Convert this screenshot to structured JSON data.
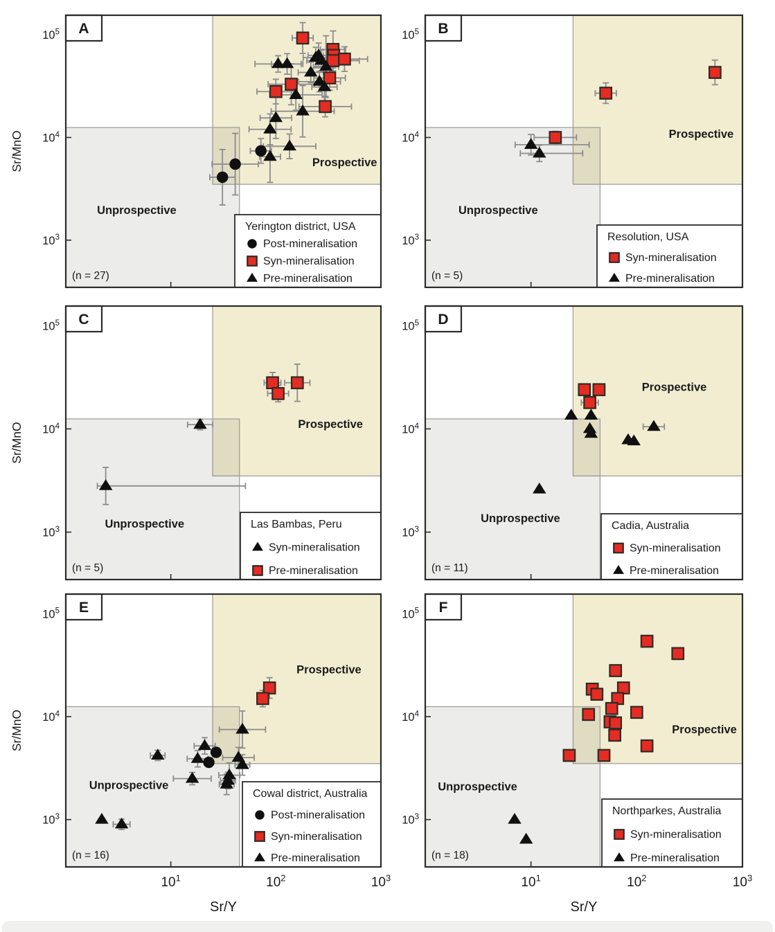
{
  "figure": {
    "xlabel": "Sr/Y",
    "ylabel": "Sr/MnO",
    "x_tick_labels": [
      "10^1",
      "10^2",
      "10^3"
    ],
    "x_tick_values": [
      10,
      100,
      1000
    ],
    "y_tick_labels": [
      "10^5",
      "10^4",
      "10^3"
    ],
    "y_tick_values": [
      100000,
      10000,
      1000
    ],
    "xlim": [
      1,
      1000
    ],
    "ylim": [
      347,
      155000
    ],
    "zone_labels": {
      "prospective": "Prospective",
      "unprospective": "Unprospective"
    },
    "zones": {
      "prospective": {
        "x_min": 25,
        "y_min": 3500
      },
      "unprospective": {
        "x_max": 45,
        "y_max": 12500
      }
    },
    "colors": {
      "prospective_fill": "#f2edd1",
      "unprospective_fill": "rgba(100,100,92,0.12)",
      "zone_stroke": "#9a9a97",
      "marker_red": "#e62b22",
      "marker_black": "#101010",
      "marker_stroke": "#2f2a26",
      "error_bar": "#8c8c8c",
      "text": "#1a1a1a",
      "panel_border": "#2b2b2b",
      "footer_band": "#f0f0ee"
    }
  },
  "chart_data": [
    {
      "id": "A",
      "letter": "A",
      "type": "scatter",
      "legend_title": "Yerington district, USA",
      "n_label": "(n = 27)",
      "row": 0,
      "col": 0,
      "label_pos": {
        "prospective": [
          0.885,
          0.555
        ],
        "unprospective": [
          0.225,
          0.73
        ]
      },
      "series": [
        {
          "name": "Post-mineralisation",
          "marker": "circle",
          "color": "black",
          "points": [
            [
              72,
              7400,
              0.1,
              0.12
            ],
            [
              41,
              5500,
              0.22,
              0.3
            ],
            [
              31,
              4100,
              0.12,
              0.27
            ]
          ]
        },
        {
          "name": "Syn-mineralisation",
          "marker": "square",
          "color": "red",
          "points": [
            [
              180,
              93000,
              0.1,
              0.15
            ],
            [
              350,
              72000,
              0.12,
              0.18
            ],
            [
              355,
              63000,
              0.1,
              0.1
            ],
            [
              350,
              56000,
              0.25,
              0.1
            ],
            [
              450,
              58000,
              0.22,
              0.12
            ],
            [
              325,
              38000,
              0.15,
              0.12
            ],
            [
              140,
              33000,
              0.22,
              0.2
            ],
            [
              100,
              28000,
              0.18,
              0.12
            ],
            [
              295,
              20000,
              0.25,
              0.1
            ]
          ]
        },
        {
          "name": "Pre-mineralisation",
          "marker": "triangle",
          "color": "black",
          "points": [
            [
              105,
              52000,
              0.22,
              0.08
            ],
            [
              128,
              52000,
              0.15,
              0.1
            ],
            [
              240,
              60000,
              0.12,
              0.1
            ],
            [
              255,
              63000,
              0.1,
              0.12
            ],
            [
              270,
              56000,
              0.1,
              0.1
            ],
            [
              300,
              49000,
              0.12,
              0.3
            ],
            [
              215,
              43000,
              0.12,
              0.1
            ],
            [
              260,
              35000,
              0.2,
              0.1
            ],
            [
              290,
              31000,
              0.12,
              0.15
            ],
            [
              155,
              26000,
              0.25,
              0.15
            ],
            [
              180,
              18000,
              0.3,
              0.25
            ],
            [
              100,
              15500,
              0.15,
              0.2
            ],
            [
              88,
              12000,
              0.2,
              0.15
            ],
            [
              135,
              8200,
              0.25,
              0.12
            ],
            [
              88,
              6500,
              0.1,
              0.25
            ]
          ]
        }
      ]
    },
    {
      "id": "B",
      "letter": "B",
      "type": "scatter",
      "legend_title": "Resolution, USA",
      "n_label": "(n = 5)",
      "row": 0,
      "col": 1,
      "label_pos": {
        "prospective": [
          0.87,
          0.45
        ],
        "unprospective": [
          0.23,
          0.73
        ]
      },
      "series": [
        {
          "name": "Syn-mineralisation",
          "marker": "square",
          "color": "red",
          "points": [
            [
              550,
              43000,
              0.03,
              0.12
            ],
            [
              51,
              27000,
              0.1,
              0.1
            ],
            [
              17,
              10000,
              0.2,
              0.06
            ]
          ]
        },
        {
          "name": "Pre-mineralisation",
          "marker": "triangle",
          "color": "black",
          "points": [
            [
              10,
              8500,
              0.15,
              0.1,
              0.55
            ],
            [
              12,
              7000,
              0.18,
              0.08,
              0.41
            ]
          ]
        }
      ]
    },
    {
      "id": "C",
      "letter": "C",
      "type": "scatter",
      "legend_title": "Las Bambas, Peru",
      "n_label": "(n = 5)",
      "row": 1,
      "col": 0,
      "label_pos": {
        "prospective": [
          0.84,
          0.445
        ],
        "unprospective": [
          0.25,
          0.81
        ]
      },
      "series": [
        {
          "name": "Syn-mineralisation",
          "marker": "triangle",
          "color": "black",
          "points": [
            [
              19,
              11000,
              0.12,
              0.05
            ],
            [
              2.4,
              2800,
              0.08,
              0.18,
              1.33
            ]
          ]
        },
        {
          "name": "Pre-mineralisation",
          "marker": "square",
          "color": "red",
          "points": [
            [
              93,
              28000,
              0.08,
              0.1
            ],
            [
              160,
              28000,
              0.12,
              0.18
            ],
            [
              105,
              22000,
              0.1,
              0.08
            ]
          ]
        }
      ]
    },
    {
      "id": "D",
      "letter": "D",
      "type": "scatter",
      "legend_title": "Cadia, Australia",
      "n_label": "(n = 11)",
      "row": 1,
      "col": 1,
      "label_pos": {
        "prospective": [
          0.785,
          0.31
        ],
        "unprospective": [
          0.3,
          0.79
        ]
      },
      "series": [
        {
          "name": "Syn-mineralisation",
          "marker": "square",
          "color": "red",
          "points": [
            [
              32,
              24000,
              0,
              0
            ],
            [
              44,
              24000,
              0,
              0
            ],
            [
              36,
              18000,
              0.08,
              0
            ]
          ]
        },
        {
          "name": "Pre-mineralisation",
          "marker": "triangle",
          "color": "black",
          "points": [
            [
              24,
              13500,
              0,
              0
            ],
            [
              37,
              13500,
              0,
              0
            ],
            [
              36,
              10000,
              0,
              0
            ],
            [
              37,
              9000,
              0,
              0
            ],
            [
              145,
              10500,
              0.1,
              0
            ],
            [
              83,
              7800,
              0,
              0
            ],
            [
              94,
              7600,
              0,
              0
            ],
            [
              12,
              2600,
              0,
              0
            ]
          ]
        }
      ]
    },
    {
      "id": "E",
      "letter": "E",
      "type": "scatter",
      "legend_title": "Cowal district, Australia",
      "n_label": "(n = 16)",
      "row": 2,
      "col": 0,
      "label_pos": {
        "prospective": [
          0.835,
          0.29
        ],
        "unprospective": [
          0.2,
          0.715
        ]
      },
      "series": [
        {
          "name": "Post-mineralisation",
          "marker": "circle",
          "color": "black",
          "points": [
            [
              27,
              4500,
              0,
              0
            ],
            [
              23,
              3600,
              0,
              0
            ]
          ]
        },
        {
          "name": "Syn-mineralisation",
          "marker": "square",
          "color": "red",
          "points": [
            [
              87,
              19000,
              0,
              0.1
            ],
            [
              75,
              15000,
              0,
              0.08
            ]
          ]
        },
        {
          "name": "Pre-mineralisation",
          "marker": "triangle",
          "color": "black",
          "points": [
            [
              48,
              7500,
              0.22,
              0.18
            ],
            [
              21,
              5200,
              0.1,
              0.08
            ],
            [
              7.5,
              4200,
              0.07,
              0.05
            ],
            [
              18,
              3900,
              0.1,
              0.08
            ],
            [
              44,
              4000,
              0.15,
              0.1
            ],
            [
              48,
              3400,
              0.07,
              0.1
            ],
            [
              36,
              2700,
              0.1,
              0.12
            ],
            [
              35,
              2400,
              0.07,
              0.08
            ],
            [
              34,
              2200,
              0.07,
              0.1
            ],
            [
              16,
              2500,
              0.18,
              0.06
            ],
            [
              2.2,
              1000,
              0,
              0
            ],
            [
              3.4,
              900,
              0.08,
              0.05
            ]
          ]
        }
      ]
    },
    {
      "id": "F",
      "letter": "F",
      "type": "scatter",
      "legend_title": "Northparkes, Australia",
      "n_label": "(n = 18)",
      "row": 2,
      "col": 1,
      "label_pos": {
        "prospective": [
          0.88,
          0.51
        ],
        "unprospective": [
          0.165,
          0.72
        ]
      },
      "series": [
        {
          "name": "Syn-mineralisation",
          "marker": "square",
          "color": "red",
          "points": [
            [
              125,
              54000,
              0,
              0
            ],
            [
              245,
              41000,
              0,
              0
            ],
            [
              63,
              28000,
              0,
              0
            ],
            [
              38,
              18500,
              0,
              0
            ],
            [
              42,
              16500,
              0,
              0
            ],
            [
              75,
              19000,
              0,
              0
            ],
            [
              66,
              15000,
              0,
              0
            ],
            [
              58,
              12000,
              0,
              0
            ],
            [
              35,
              10500,
              0,
              0
            ],
            [
              100,
              11000,
              0,
              0
            ],
            [
              56,
              8900,
              0,
              0
            ],
            [
              63,
              8700,
              0,
              0
            ],
            [
              62,
              6600,
              0,
              0
            ],
            [
              125,
              5200,
              0,
              0
            ],
            [
              23,
              4200,
              0,
              0
            ],
            [
              49,
              4200,
              0,
              0
            ]
          ]
        },
        {
          "name": "Pre-mineralisation",
          "marker": "triangle",
          "color": "black",
          "points": [
            [
              7,
              1000,
              0,
              0
            ],
            [
              9,
              640,
              0,
              0
            ]
          ]
        }
      ]
    }
  ]
}
